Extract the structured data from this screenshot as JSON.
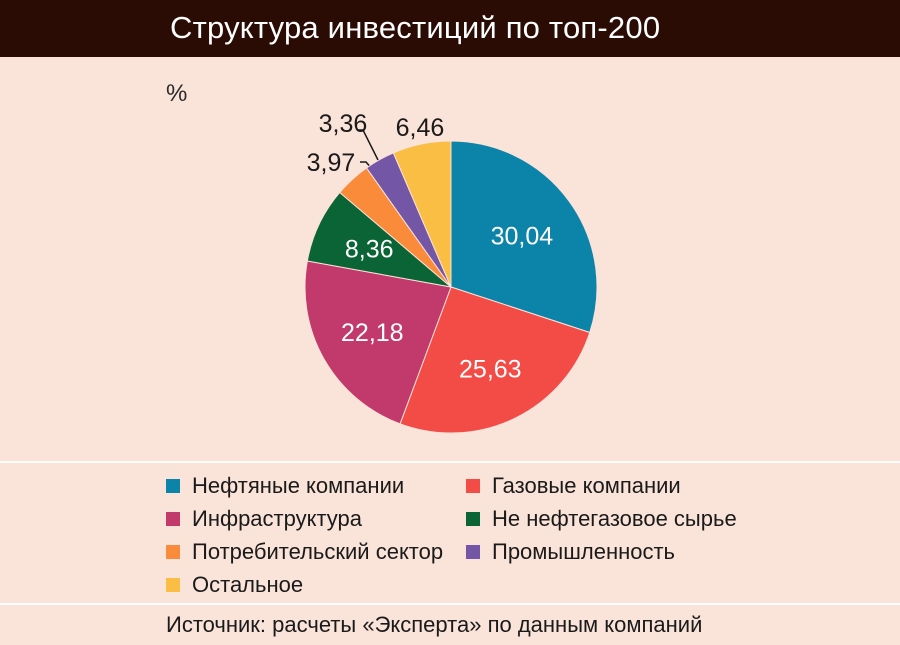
{
  "title": "Структура инвестиций по топ-200",
  "unit": "%",
  "source": "Источник: расчеты «Эксперта» по данным компаний",
  "chart_data": {
    "type": "pie",
    "title": "Структура инвестиций по топ-200",
    "unit": "%",
    "slices": [
      {
        "label": "Нефтяные компании",
        "value": 30.04,
        "value_text": "30,04",
        "color": "#0c83a8"
      },
      {
        "label": "Газовые компании",
        "value": 25.63,
        "value_text": "25,63",
        "color": "#f34b45"
      },
      {
        "label": "Инфраструктура",
        "value": 22.18,
        "value_text": "22,18",
        "color": "#c13a6b"
      },
      {
        "label": "Не нефтегазовое сырье",
        "value": 8.36,
        "value_text": "8,36",
        "color": "#0b6436"
      },
      {
        "label": "Потребительский сектор",
        "value": 3.97,
        "value_text": "3,97",
        "color": "#f98b3b"
      },
      {
        "label": "Промышленность",
        "value": 3.36,
        "value_text": "3,36",
        "color": "#7456a6"
      },
      {
        "label": "Остальное",
        "value": 6.46,
        "value_text": "6,46",
        "color": "#fbbe44"
      }
    ],
    "legend_order": [
      "Нефтяные компании",
      "Газовые компании",
      "Инфраструктура",
      "Не нефтегазовое сырье",
      "Потребительский сектор",
      "Промышленность",
      "Остальное"
    ]
  }
}
